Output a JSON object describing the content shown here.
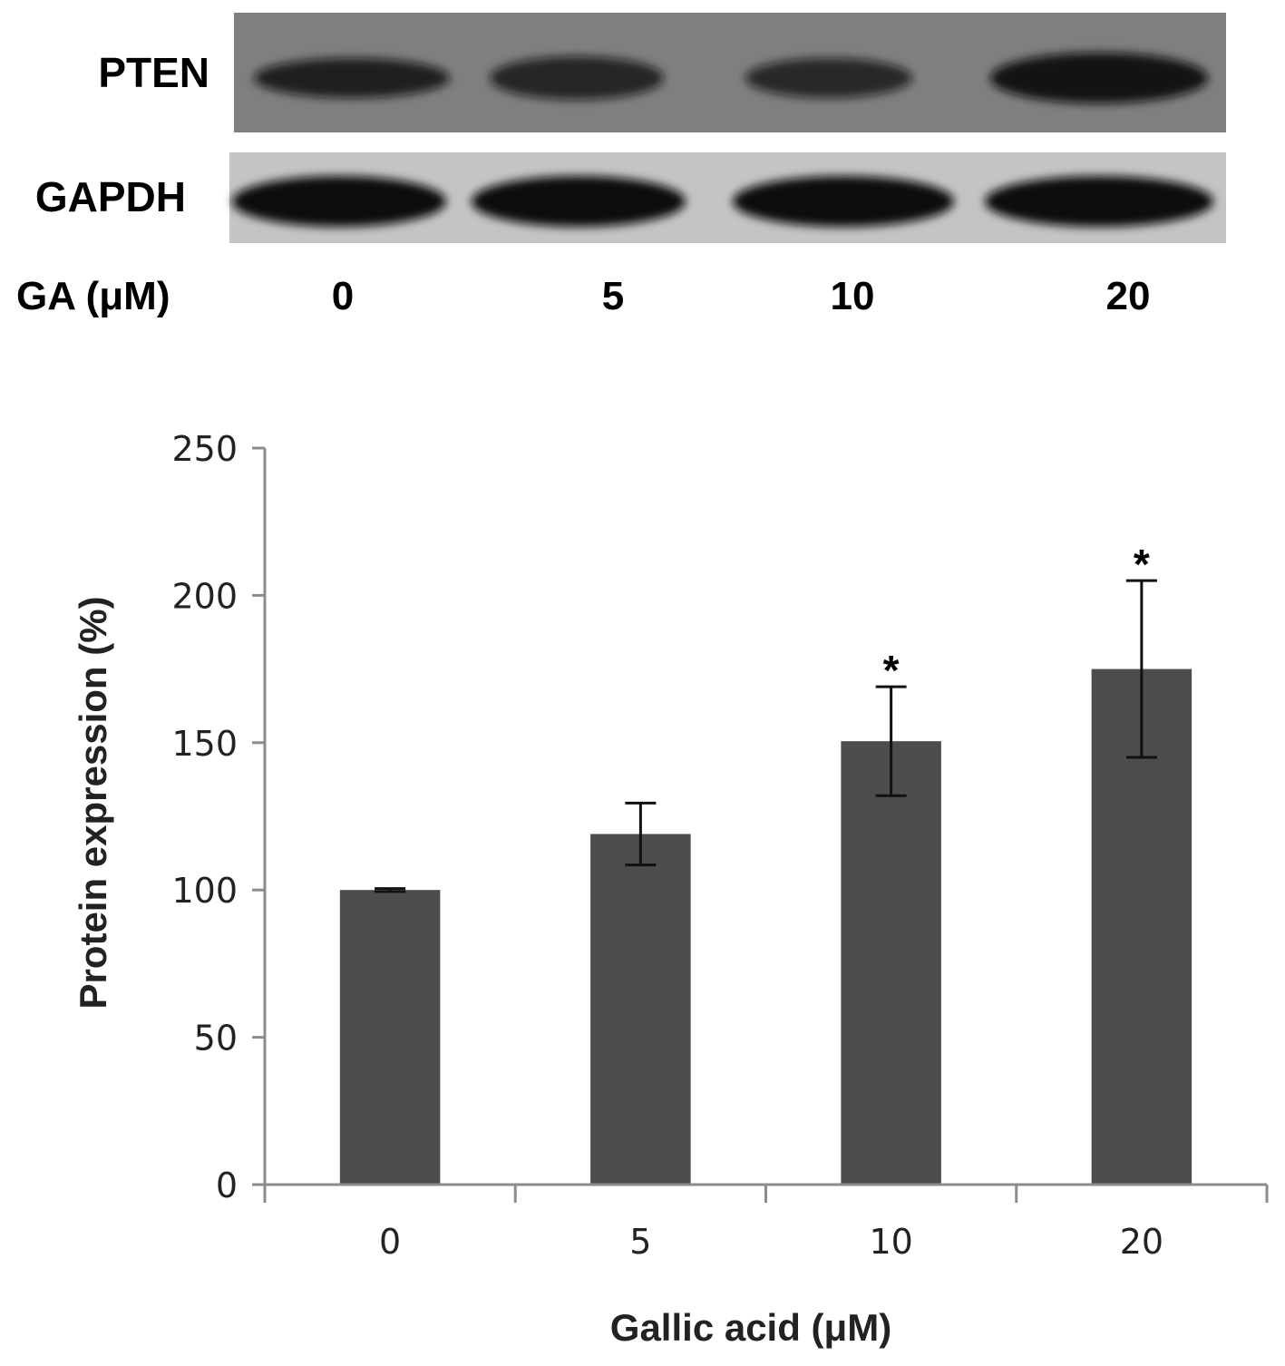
{
  "blot": {
    "rows": [
      {
        "label": "PTEN",
        "band_intensity": [
          0.85,
          0.8,
          0.78,
          0.95
        ]
      },
      {
        "label": "GAPDH",
        "band_intensity": [
          1.0,
          1.0,
          1.0,
          1.0
        ]
      }
    ],
    "dose_label": "GA (μM)",
    "doses": [
      "0",
      "5",
      "10",
      "20"
    ],
    "colors": {
      "pten_bg": "#7f7f7f",
      "gapdh_bg": "#c4c4c4",
      "band": "#111111"
    }
  },
  "chart_data": {
    "type": "bar",
    "categories": [
      "0",
      "5",
      "10",
      "20"
    ],
    "values": [
      100,
      119,
      150.5,
      175
    ],
    "error": [
      0.5,
      10.5,
      18.5,
      30
    ],
    "annotations": [
      "",
      "",
      "*",
      "*"
    ],
    "xlabel": "Gallic acid (μM)",
    "ylabel": "Protein expression (%)",
    "ylim": [
      0,
      250
    ],
    "yticks": [
      "0",
      "50",
      "100",
      "150",
      "200",
      "250"
    ],
    "grid": false,
    "bar_color": "#4d4d4d",
    "axis_color": "#8c8c8c"
  }
}
